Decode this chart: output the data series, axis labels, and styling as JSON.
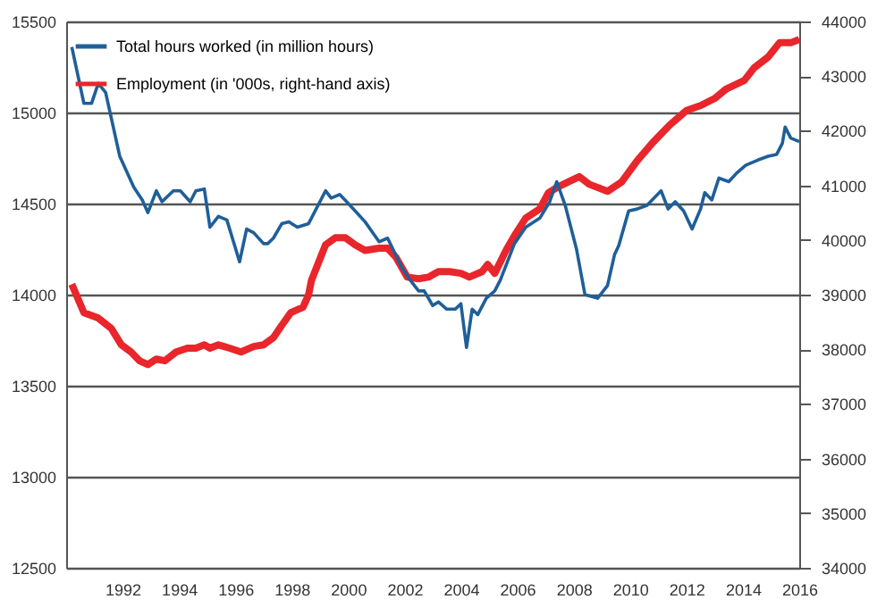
{
  "chart_data": {
    "type": "line",
    "xlim": [
      1990,
      2016
    ],
    "xticks": [
      1992,
      1994,
      1996,
      1998,
      2000,
      2002,
      2004,
      2006,
      2008,
      2010,
      2012,
      2014,
      2016
    ],
    "ylim": [
      12500,
      15500
    ],
    "yticks": [
      12500,
      13000,
      13500,
      14000,
      14500,
      15000,
      15500
    ],
    "y2lim": [
      34000,
      44000
    ],
    "y2ticks": [
      34000,
      35000,
      36000,
      37000,
      38000,
      39000,
      40000,
      41000,
      42000,
      43000,
      44000
    ],
    "grid": "y",
    "legend": "top",
    "marker": "none",
    "line_style": "solid",
    "series": [
      {
        "name": "Total hours worked (in million hours)",
        "color": "#1f5f99",
        "x": [
          1990.2,
          1990.63,
          1990.9,
          1991.14,
          1991.4,
          1991.9,
          1992.4,
          1992.7,
          1992.9,
          1993.2,
          1993.4,
          1993.8,
          1994.05,
          1994.4,
          1994.6,
          1994.9,
          1995.1,
          1995.4,
          1995.7,
          1996.15,
          1996.4,
          1996.65,
          1997.0,
          1997.15,
          1997.35,
          1997.65,
          1997.9,
          1998.2,
          1998.6,
          1999.2,
          1999.4,
          1999.7,
          1999.95,
          2000.25,
          2000.6,
          2001.1,
          2001.4,
          2001.9,
          2002.2,
          2002.5,
          2002.7,
          2003.0,
          2003.2,
          2003.5,
          2003.8,
          2004.0,
          2004.2,
          2004.4,
          2004.6,
          2004.9,
          2005.2,
          2005.4,
          2005.9,
          2006.3,
          2006.8,
          2007.15,
          2007.4,
          2007.7,
          2008.1,
          2008.4,
          2008.85,
          2009.2,
          2009.45,
          2009.6,
          2009.95,
          2010.25,
          2010.6,
          2011.1,
          2011.35,
          2011.6,
          2011.9,
          2012.2,
          2012.5,
          2012.65,
          2012.9,
          2013.15,
          2013.5,
          2013.8,
          2014.1,
          2014.55,
          2014.9,
          2015.2,
          2015.4,
          2015.5,
          2015.7,
          2016.0
        ],
        "values": [
          15360,
          15050,
          15050,
          15160,
          15110,
          14760,
          14590,
          14520,
          14450,
          14570,
          14510,
          14570,
          14570,
          14510,
          14570,
          14580,
          14370,
          14430,
          14410,
          14180,
          14360,
          14340,
          14280,
          14280,
          14310,
          14390,
          14400,
          14370,
          14390,
          14570,
          14530,
          14550,
          14510,
          14460,
          14400,
          14290,
          14310,
          14150,
          14080,
          14020,
          14020,
          13940,
          13960,
          13920,
          13920,
          13950,
          13710,
          13920,
          13890,
          13980,
          14020,
          14080,
          14280,
          14370,
          14420,
          14510,
          14620,
          14490,
          14250,
          14000,
          13980,
          14050,
          14220,
          14270,
          14460,
          14470,
          14490,
          14570,
          14470,
          14510,
          14460,
          14360,
          14470,
          14560,
          14520,
          14640,
          14620,
          14670,
          14710,
          14740,
          14760,
          14770,
          14830,
          14920,
          14860,
          14840
        ]
      },
      {
        "name": "Employment (in '000s, right-hand axis)",
        "color": "#e8262b",
        "axis": "y2",
        "x": [
          1990.2,
          1990.63,
          1991.14,
          1991.6,
          1991.96,
          1992.3,
          1992.6,
          1992.9,
          1993.2,
          1993.5,
          1993.9,
          1994.3,
          1994.6,
          1994.9,
          1995.1,
          1995.4,
          1995.8,
          1996.2,
          1996.65,
          1997.0,
          1997.35,
          1997.65,
          1997.97,
          1998.4,
          1998.6,
          1998.7,
          1999.2,
          1999.55,
          1999.9,
          2000.25,
          2000.6,
          2001.1,
          2001.4,
          2001.7,
          2002.1,
          2002.5,
          2002.85,
          2003.2,
          2003.6,
          2004.0,
          2004.3,
          2004.75,
          2004.95,
          2005.2,
          2005.6,
          2005.9,
          2006.3,
          2006.8,
          2007.1,
          2007.4,
          2007.8,
          2008.2,
          2008.55,
          2009.2,
          2009.7,
          2010.25,
          2010.8,
          2011.4,
          2012.0,
          2012.5,
          2013.0,
          2013.4,
          2014.05,
          2014.4,
          2014.9,
          2015.3,
          2015.7,
          2016.0
        ],
        "values": [
          39190,
          38670,
          38570,
          38380,
          38080,
          37950,
          37790,
          37720,
          37820,
          37790,
          37950,
          38020,
          38020,
          38080,
          38020,
          38080,
          38020,
          37950,
          38050,
          38080,
          38210,
          38440,
          38670,
          38770,
          39000,
          39260,
          39910,
          40040,
          40040,
          39910,
          39810,
          39850,
          39850,
          39680,
          39320,
          39290,
          39320,
          39420,
          39420,
          39390,
          39320,
          39420,
          39550,
          39390,
          39810,
          40080,
          40400,
          40570,
          40860,
          40960,
          41060,
          41160,
          41020,
          40890,
          41060,
          41450,
          41780,
          42100,
          42370,
          42460,
          42590,
          42760,
          42920,
          43150,
          43350,
          43610,
          43610,
          43670
        ]
      }
    ]
  }
}
